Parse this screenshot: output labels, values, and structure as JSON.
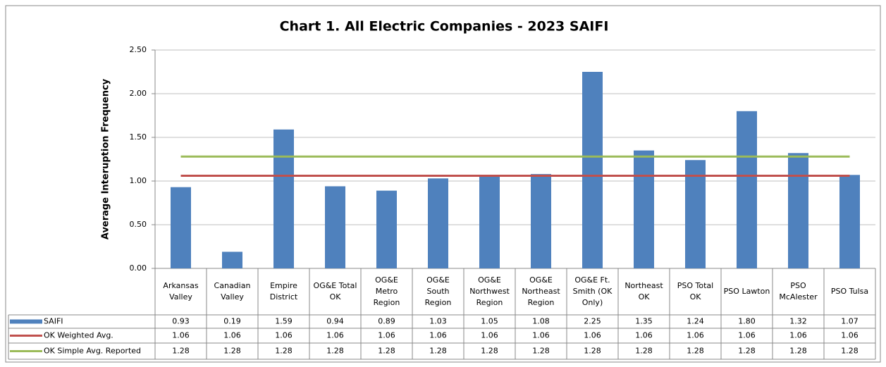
{
  "chart_data": {
    "type": "bar",
    "title": "Chart 1. All Electric Companies - 2023 SAIFI",
    "y_label": "Average Interuption Frequency",
    "categories": [
      "Arkansas Valley",
      "Canadian Valley",
      "Empire District",
      "OG&E Total OK",
      "OG&E Metro Region",
      "OG&E South Region",
      "OG&E Northwest Region",
      "OG&E Northeast Region",
      "OG&E Ft. Smith (OK Only)",
      "Northeast OK",
      "PSO Total OK",
      "PSO Lawton",
      "PSO McAlester",
      "PSO Tulsa"
    ],
    "series": [
      {
        "name": "SAIFI",
        "type": "bar",
        "color": "#4f81bd",
        "values": [
          0.93,
          0.19,
          1.59,
          0.94,
          0.89,
          1.03,
          1.05,
          1.08,
          2.25,
          1.35,
          1.24,
          1.8,
          1.32,
          1.07
        ],
        "value_labels": [
          "0.93",
          "0.19",
          "1.59",
          "0.94",
          "0.89",
          "1.03",
          "1.05",
          "1.08",
          "2.25",
          "1.35",
          "1.24",
          "1.80",
          "1.32",
          "1.07"
        ]
      },
      {
        "name": "OK Weighted Avg.",
        "type": "line",
        "color": "#c0504d",
        "values": [
          1.06,
          1.06,
          1.06,
          1.06,
          1.06,
          1.06,
          1.06,
          1.06,
          1.06,
          1.06,
          1.06,
          1.06,
          1.06,
          1.06
        ]
      },
      {
        "name": "OK Simple Avg. Reported",
        "type": "line",
        "color": "#9bbb59",
        "values": [
          1.28,
          1.28,
          1.28,
          1.28,
          1.28,
          1.28,
          1.28,
          1.28,
          1.28,
          1.28,
          1.28,
          1.28,
          1.28,
          1.28
        ]
      }
    ],
    "ylim": [
      0,
      2.5
    ],
    "yticks": [
      {
        "value": 0,
        "label": "0.00"
      },
      {
        "value": 0.5,
        "label": "0.50"
      },
      {
        "value": 1,
        "label": "1.00"
      },
      {
        "value": 1.5,
        "label": "1.50"
      },
      {
        "value": 2,
        "label": "2.00"
      },
      {
        "value": 2.5,
        "label": "2.50"
      }
    ],
    "grid": true
  }
}
